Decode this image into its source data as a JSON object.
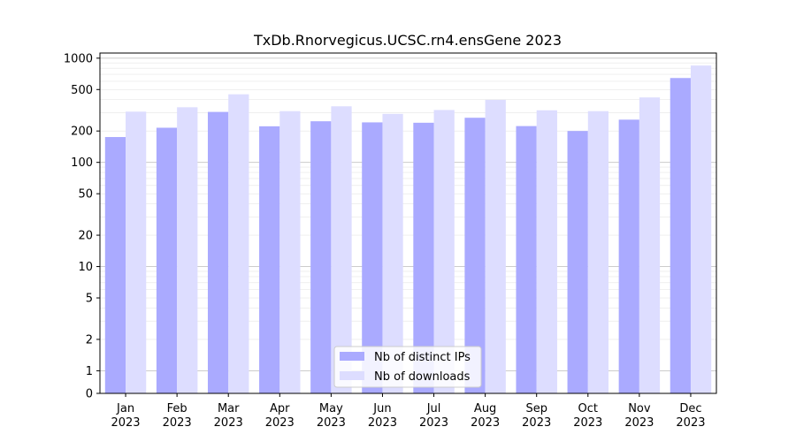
{
  "chart_data": {
    "type": "bar",
    "title": "TxDb.Rnorvegicus.UCSC.rn4.ensGene 2023",
    "xlabel": "",
    "ylabel": "",
    "yscale": "symlog",
    "yticks": [
      "0",
      "1",
      "2",
      "5",
      "10",
      "20",
      "50",
      "100",
      "200",
      "500",
      "1000"
    ],
    "ylim": [
      0,
      1000
    ],
    "grid": true,
    "legend_position": "bottom-center",
    "categories": [
      "Jan\n2023",
      "Feb\n2023",
      "Mar\n2023",
      "Apr\n2023",
      "May\n2023",
      "Jun\n2023",
      "Jul\n2023",
      "Aug\n2023",
      "Sep\n2023",
      "Oct\n2023",
      "Nov\n2023",
      "Dec\n2023"
    ],
    "series": [
      {
        "name": "Nb of distinct IPs",
        "color": "#aaaaff",
        "values": [
          175,
          215,
          305,
          222,
          248,
          242,
          240,
          268,
          223,
          200,
          257,
          645
        ]
      },
      {
        "name": "Nb of downloads",
        "color": "#ddddff",
        "values": [
          307,
          338,
          450,
          310,
          345,
          292,
          318,
          398,
          316,
          310,
          420,
          850
        ]
      }
    ]
  }
}
